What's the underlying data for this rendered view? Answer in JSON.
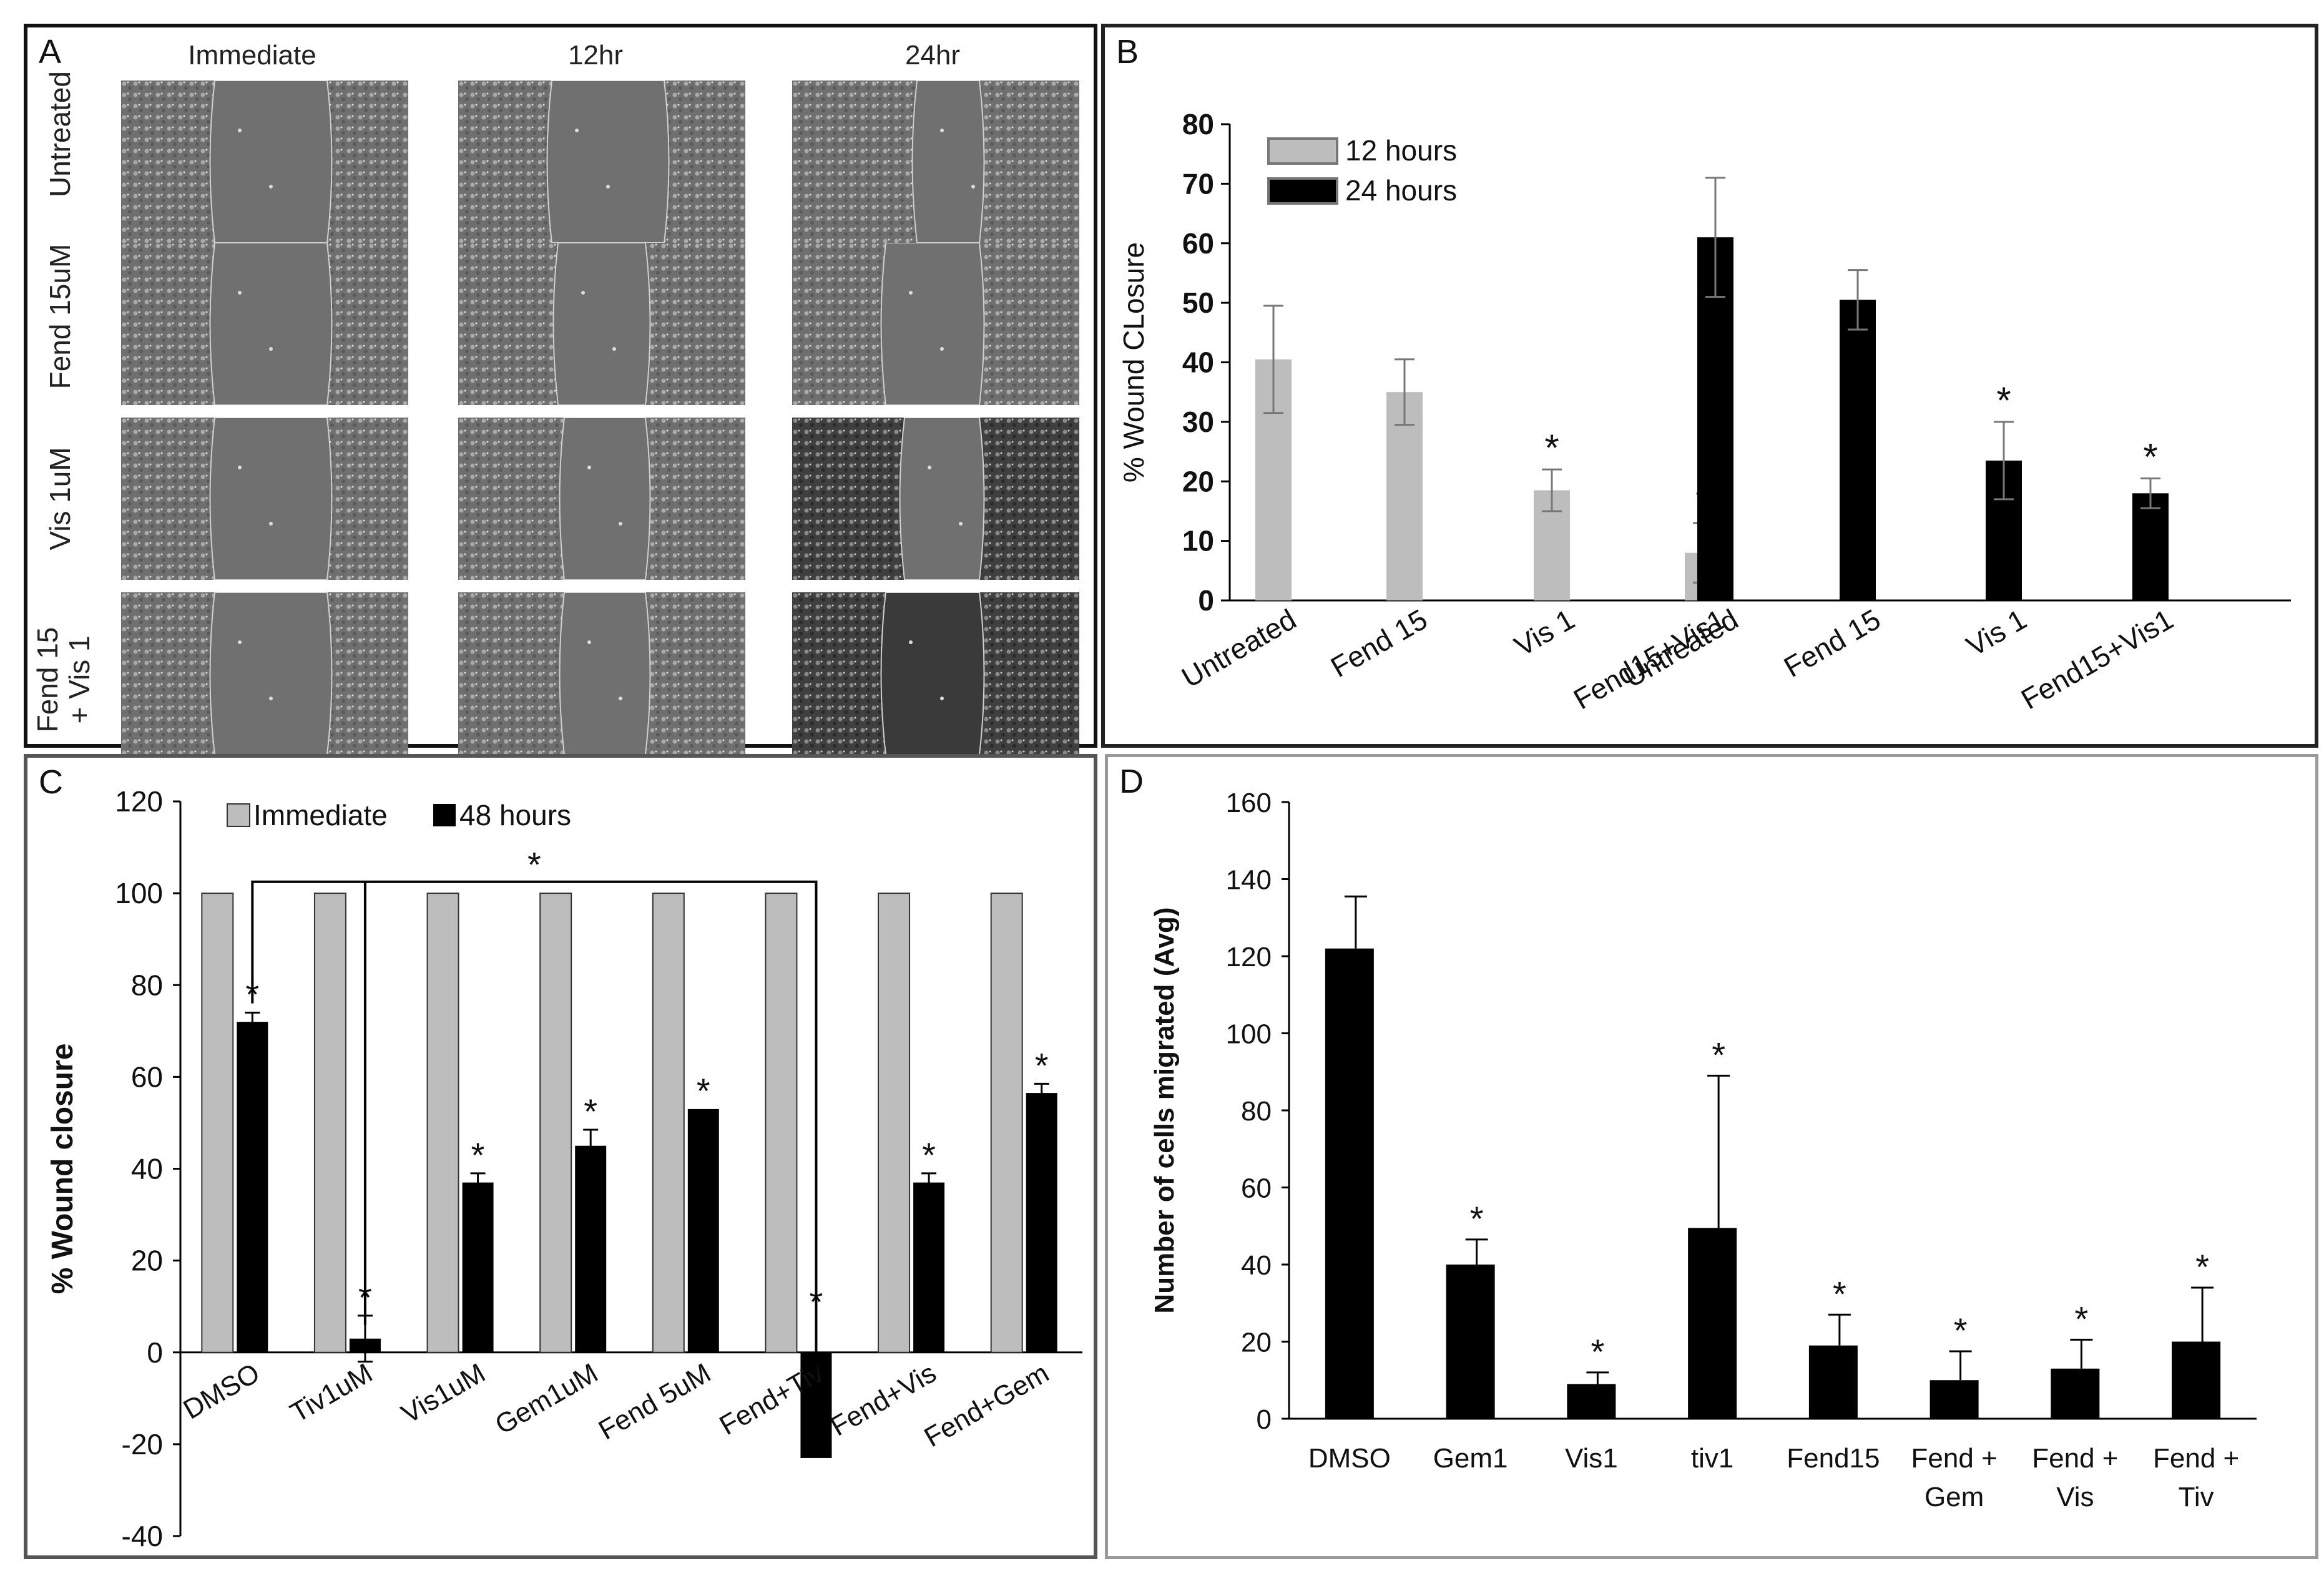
{
  "panel_a": {
    "label": "A",
    "columns": [
      "Immediate",
      "12hr",
      "24hr"
    ],
    "rows": [
      {
        "lines": [
          "Untreated"
        ]
      },
      {
        "lines": [
          "Fend 15uM"
        ]
      },
      {
        "lines": [
          "Vis 1uM"
        ]
      },
      {
        "lines": [
          "Fend  15",
          "+ Vis 1"
        ]
      }
    ]
  },
  "chart_data": [
    {
      "panel": "B",
      "type": "bar",
      "ylabel": "% Wound CLosure",
      "ylim": [
        0,
        80
      ],
      "yticks": [
        0,
        10,
        20,
        30,
        40,
        50,
        60,
        70,
        80
      ],
      "legend": "top-left",
      "groups": [
        {
          "name": "12 hours",
          "color": "#bdbdbd",
          "categories": [
            "Untreated",
            "Fend 15",
            "Vis 1",
            "Fend15+Vis1"
          ],
          "values": [
            40.5,
            35,
            18.5,
            8
          ],
          "errors": [
            9,
            5.5,
            3.5,
            5
          ],
          "significant": [
            false,
            false,
            true,
            true
          ]
        },
        {
          "name": "24 hours",
          "color": "#000000",
          "categories": [
            "Untreated",
            "Fend 15",
            "Vis 1",
            "Fend15+Vis1"
          ],
          "values": [
            61,
            50.5,
            23.5,
            18
          ],
          "errors": [
            10,
            5,
            6.5,
            2.5
          ],
          "significant": [
            false,
            false,
            true,
            true
          ]
        }
      ]
    },
    {
      "panel": "C",
      "type": "bar",
      "ylabel": "% Wound closure",
      "ylim": [
        -40,
        120
      ],
      "yticks": [
        -40,
        -20,
        0,
        20,
        40,
        60,
        80,
        100,
        120
      ],
      "legend": "top-left",
      "categories": [
        "DMSO",
        "Tiv1uM",
        "Vis1uM",
        "Gem1uM",
        "Fend 5uM",
        "Fend+Tiv",
        "Fend+Vis",
        "Fend+Gem"
      ],
      "series": [
        {
          "name": "Immediate",
          "color": "#bdbdbd",
          "values": [
            100,
            100,
            100,
            100,
            100,
            100,
            100,
            100
          ]
        },
        {
          "name": "48 hours",
          "color": "#000000",
          "values": [
            72,
            3,
            37,
            45,
            53,
            -23,
            37,
            56.5
          ],
          "errors": [
            2,
            5,
            2,
            3.5,
            0,
            0,
            2,
            2
          ],
          "significant": [
            true,
            true,
            true,
            true,
            true,
            true,
            true,
            true
          ]
        }
      ],
      "bracket_star": "*"
    },
    {
      "panel": "D",
      "type": "bar",
      "ylabel": "Number of cells migrated (Avg)",
      "ylim": [
        0,
        160
      ],
      "yticks": [
        0,
        20,
        40,
        60,
        80,
        100,
        120,
        140,
        160
      ],
      "categories": [
        [
          "DMSO"
        ],
        [
          "Gem1"
        ],
        [
          "Vis1"
        ],
        [
          "tiv1"
        ],
        [
          "Fend15"
        ],
        [
          "Fend +",
          "Gem"
        ],
        [
          "Fend +",
          "Vis"
        ],
        [
          "Fend +",
          "Tiv"
        ]
      ],
      "values": [
        122,
        40,
        9,
        49.5,
        19,
        10,
        13,
        20
      ],
      "errors": [
        13.5,
        6.5,
        3,
        39.5,
        8,
        7.5,
        7.5,
        14
      ],
      "significant": [
        false,
        true,
        true,
        true,
        true,
        true,
        true,
        true
      ],
      "color": "#000000"
    }
  ]
}
